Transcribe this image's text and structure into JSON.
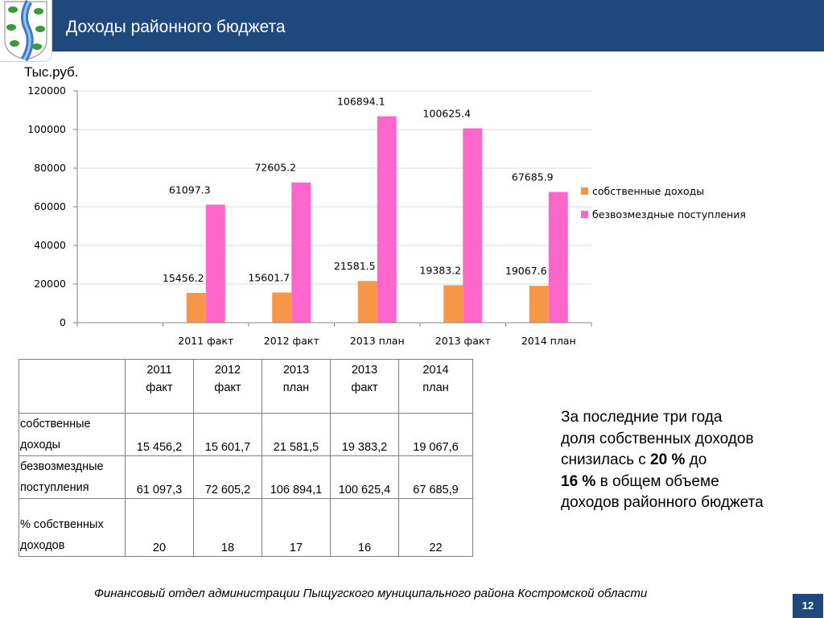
{
  "header": {
    "title": "Доходы районного бюджета"
  },
  "unit_label": "Тыс.руб.",
  "colors": {
    "header_bg": "#1f497d",
    "series_own": "#f79646",
    "series_grants": "#ff66cc"
  },
  "chart_data": {
    "type": "bar",
    "categories": [
      "2011 факт",
      "2012 факт",
      "2013 план",
      "2013 факт",
      "2014 план"
    ],
    "ylim": [
      0,
      120000
    ],
    "yticks": [
      "0",
      "20000",
      "40000",
      "60000",
      "80000",
      "100000",
      "120000"
    ],
    "grid": true,
    "legend_position": "right",
    "series": [
      {
        "name": "собственные доходы",
        "values": [
          15456.2,
          15601.7,
          21581.5,
          19383.2,
          19067.6
        ],
        "labels": [
          "15456.2",
          "15601.7",
          "21581.5",
          "19383.2",
          "19067.6"
        ]
      },
      {
        "name": "безвозмездные поступления",
        "values": [
          61097.3,
          72605.2,
          106894.1,
          100625.4,
          67685.9
        ],
        "labels": [
          "61097.3",
          "72605.2",
          "106894.1",
          "100625.4",
          "67685.9"
        ]
      }
    ]
  },
  "table": {
    "headers": [
      [
        "2011",
        "факт"
      ],
      [
        "2012",
        "факт"
      ],
      [
        "2013",
        "план"
      ],
      [
        "2013",
        "факт"
      ],
      [
        "2014",
        "план"
      ]
    ],
    "rows": [
      {
        "label1": "собственные",
        "label2": "доходы",
        "values": [
          "15 456,2",
          "15 601,7",
          "21 581,5",
          "19 383,2",
          "19 067,6"
        ]
      },
      {
        "label1": "безвозмездные",
        "label2": "поступления",
        "values": [
          "61 097,3",
          "72 605,2",
          "106 894,1",
          "100 625,4",
          "67 685,9"
        ]
      },
      {
        "label1": "% собственных",
        "label2": "доходов",
        "values": [
          "20",
          "18",
          "17",
          "16",
          "22"
        ]
      }
    ]
  },
  "note": {
    "line1": "За последние три года",
    "line2": "доля собственных доходов",
    "line3_a": "снизилась с ",
    "line3_b": "20 %",
    "line3_c": " до",
    "line4_a": "16 %",
    "line4_b": " в общем объеме",
    "line5": "доходов районного бюджета"
  },
  "footer": "Финансовый отдел администрации Пыщугского  муниципального района Костромской области",
  "page_number": "12"
}
